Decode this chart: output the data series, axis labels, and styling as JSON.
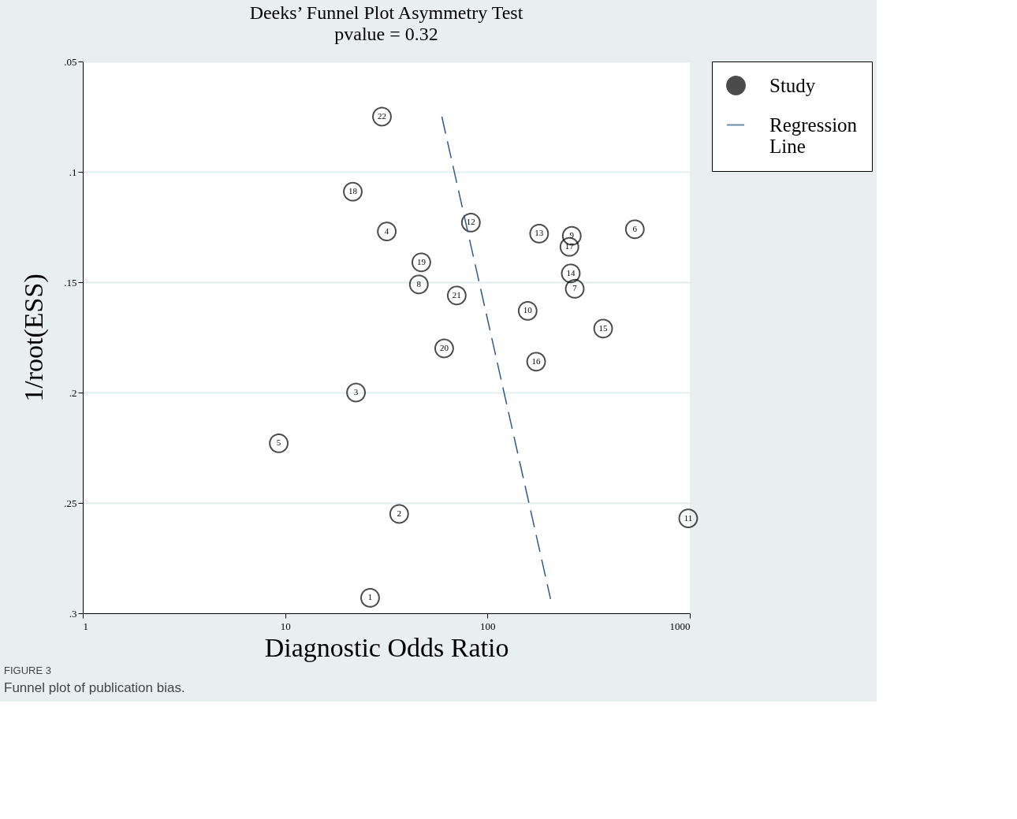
{
  "chart_data": {
    "type": "scatter",
    "title": "Deeks’ Funnel Plot Asymmetry Test",
    "subtitle": "pvalue =  0.32",
    "xlabel": "Diagnostic Odds Ratio",
    "ylabel": "1/root(ESS)",
    "log": "x",
    "xlim": [
      1,
      1000
    ],
    "xticks": [
      1,
      10,
      100,
      1000
    ],
    "ylim": [
      0.3,
      0.05
    ],
    "yticks": [
      {
        "value": 0.05,
        "label": ".05"
      },
      {
        "value": 0.1,
        "label": ".1"
      },
      {
        "value": 0.15,
        "label": ".15"
      },
      {
        "value": 0.2,
        "label": ".2"
      },
      {
        "value": 0.25,
        "label": ".25"
      },
      {
        "value": 0.3,
        "label": ".3"
      }
    ],
    "grid": "y",
    "legend": "top right",
    "series": [
      {
        "name": "Study",
        "color": "#000000",
        "marker": "circle",
        "x": [
          26.3,
          36.6,
          22.4,
          31.8,
          9.3,
          535,
          270,
          45.8,
          261,
          158,
          982,
          82.8,
          180,
          258,
          373,
          174,
          254,
          21.6,
          47.1,
          61.1,
          70.5,
          30.1
        ],
        "values": [
          0.293,
          0.255,
          0.2,
          0.127,
          0.223,
          0.126,
          0.153,
          0.151,
          0.129,
          0.163,
          0.257,
          0.123,
          0.128,
          0.146,
          0.171,
          0.186,
          0.134,
          0.109,
          0.141,
          0.18,
          0.156,
          0.075
        ]
      },
      {
        "name": "Regression Line",
        "type": "line",
        "color": "#2f5b8a",
        "line_style": "dashed",
        "marker": "none",
        "x": [
          59.5,
          205
        ],
        "values": [
          0.075,
          0.2935
        ]
      }
    ],
    "annotations": [
      {
        "text": "1",
        "x": 26.3,
        "y": 0.293
      },
      {
        "text": "2",
        "x": 36.6,
        "y": 0.255
      },
      {
        "text": "3",
        "x": 22.4,
        "y": 0.2
      },
      {
        "text": "4",
        "x": 31.8,
        "y": 0.127
      },
      {
        "text": "5",
        "x": 9.3,
        "y": 0.223
      },
      {
        "text": "6",
        "x": 535,
        "y": 0.126
      },
      {
        "text": "7",
        "x": 270,
        "y": 0.153
      },
      {
        "text": "8",
        "x": 45.8,
        "y": 0.151
      },
      {
        "text": "9",
        "x": 261,
        "y": 0.129
      },
      {
        "text": "10",
        "x": 158,
        "y": 0.163
      },
      {
        "text": "11",
        "x": 982,
        "y": 0.257
      },
      {
        "text": "12",
        "x": 82.8,
        "y": 0.123
      },
      {
        "text": "13",
        "x": 180,
        "y": 0.128
      },
      {
        "text": "14",
        "x": 258,
        "y": 0.146
      },
      {
        "text": "15",
        "x": 373,
        "y": 0.171
      },
      {
        "text": "16",
        "x": 174,
        "y": 0.186
      },
      {
        "text": "17",
        "x": 254,
        "y": 0.134
      },
      {
        "text": "18",
        "x": 21.6,
        "y": 0.109
      },
      {
        "text": "19",
        "x": 47.1,
        "y": 0.141
      },
      {
        "text": "20",
        "x": 61.1,
        "y": 0.18
      },
      {
        "text": "21",
        "x": 70.5,
        "y": 0.156
      },
      {
        "text": "22",
        "x": 30.1,
        "y": 0.075
      },
      "FIGURE 3",
      "Funnel plot of publication bias."
    ]
  }
}
